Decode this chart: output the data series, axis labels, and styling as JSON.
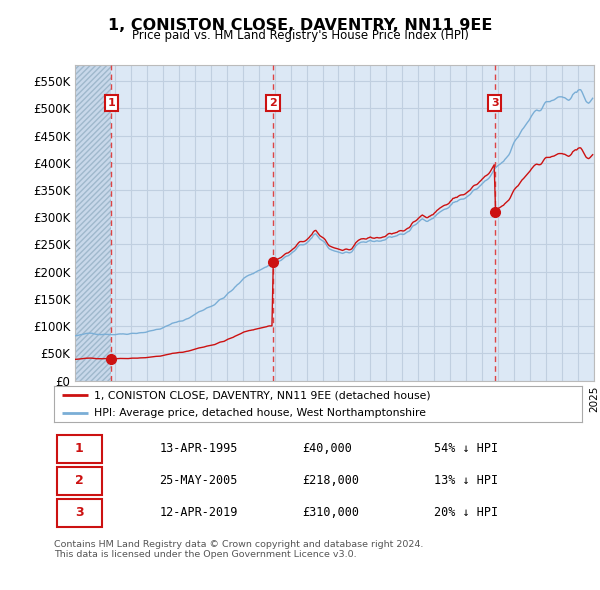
{
  "title": "1, CONISTON CLOSE, DAVENTRY, NN11 9EE",
  "subtitle": "Price paid vs. HM Land Registry's House Price Index (HPI)",
  "ylim": [
    0,
    580000
  ],
  "yticks": [
    0,
    50000,
    100000,
    150000,
    200000,
    250000,
    300000,
    350000,
    400000,
    450000,
    500000,
    550000
  ],
  "xlim_start": 1993.0,
  "xlim_end": 2025.5,
  "sale_dates": [
    1995.28,
    2005.4,
    2019.28
  ],
  "sale_prices": [
    40000,
    218000,
    310000
  ],
  "sale_labels": [
    "1",
    "2",
    "3"
  ],
  "hpi_color": "#7aaed6",
  "price_color": "#cc1111",
  "dashed_line_color": "#dd4444",
  "box_edge_color": "#cc1111",
  "legend_line1": "1, CONISTON CLOSE, DAVENTRY, NN11 9EE (detached house)",
  "legend_line2": "HPI: Average price, detached house, West Northamptonshire",
  "table_rows": [
    [
      "1",
      "13-APR-1995",
      "£40,000",
      "54% ↓ HPI"
    ],
    [
      "2",
      "25-MAY-2005",
      "£218,000",
      "13% ↓ HPI"
    ],
    [
      "3",
      "12-APR-2019",
      "£310,000",
      "20% ↓ HPI"
    ]
  ],
  "footnote": "Contains HM Land Registry data © Crown copyright and database right 2024.\nThis data is licensed under the Open Government Licence v3.0.",
  "background_color": "#ffffff",
  "plot_bg_color": "#dce8f5",
  "grid_color": "#c0cfe0"
}
